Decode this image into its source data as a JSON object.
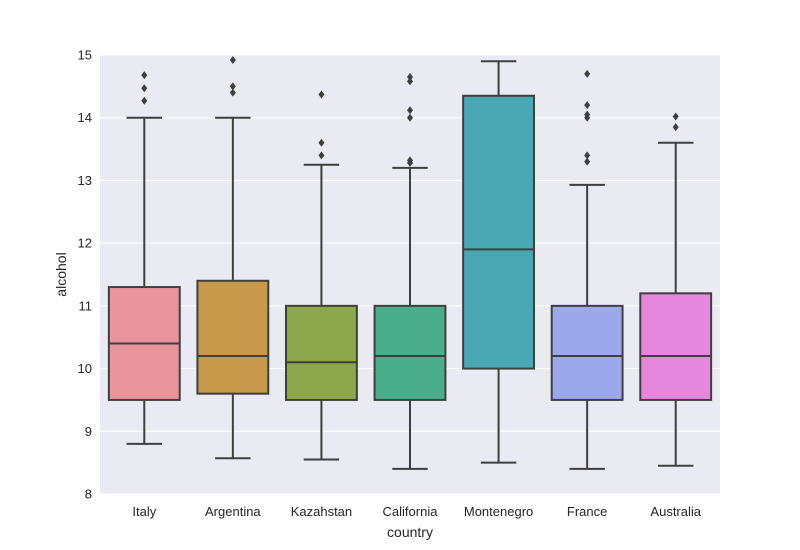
{
  "chart_data": {
    "type": "boxplot",
    "title": "",
    "xlabel": "country",
    "ylabel": "alcohol",
    "ylim": [
      8,
      15
    ],
    "yticks": [
      8,
      9,
      10,
      11,
      12,
      13,
      14,
      15
    ],
    "grid": true,
    "legend": "none",
    "categories": [
      "Italy",
      "Argentina",
      "Kazahstan",
      "California",
      "Montenegro",
      "France",
      "Australia"
    ],
    "boxes": [
      {
        "category": "Italy",
        "color": "#e9949d",
        "whisker_low": 8.8,
        "q1": 9.5,
        "median": 10.4,
        "q3": 11.3,
        "whisker_high": 14.0,
        "outliers": [
          14.27,
          14.47,
          14.68
        ]
      },
      {
        "category": "Argentina",
        "color": "#c69a4a",
        "whisker_low": 8.57,
        "q1": 9.6,
        "median": 10.2,
        "q3": 11.4,
        "whisker_high": 14.0,
        "outliers": [
          14.4,
          14.5,
          14.92
        ]
      },
      {
        "category": "Kazahstan",
        "color": "#8ea74c",
        "whisker_low": 8.55,
        "q1": 9.5,
        "median": 10.1,
        "q3": 11.0,
        "whisker_high": 13.25,
        "outliers": [
          13.4,
          13.6,
          14.37
        ]
      },
      {
        "category": "California",
        "color": "#4aad8c",
        "whisker_low": 8.4,
        "q1": 9.5,
        "median": 10.2,
        "q3": 11.0,
        "whisker_high": 13.2,
        "outliers": [
          13.28,
          13.32,
          14.0,
          14.12,
          14.58,
          14.65
        ]
      },
      {
        "category": "Montenegro",
        "color": "#4aa8b5",
        "whisker_low": 8.5,
        "q1": 10.0,
        "median": 11.9,
        "q3": 14.35,
        "whisker_high": 14.9,
        "outliers": []
      },
      {
        "category": "France",
        "color": "#9da8ea",
        "whisker_low": 8.4,
        "q1": 9.5,
        "median": 10.2,
        "q3": 11.0,
        "whisker_high": 12.93,
        "outliers": [
          13.3,
          13.4,
          14.0,
          14.05,
          14.2,
          14.7
        ]
      },
      {
        "category": "Australia",
        "color": "#e587dd",
        "whisker_low": 8.45,
        "q1": 9.5,
        "median": 10.2,
        "q3": 11.2,
        "whisker_high": 13.6,
        "outliers": [
          13.85,
          14.02
        ]
      }
    ]
  },
  "colors": {
    "plot_background": "#eaeaf2",
    "grid": "#ffffff",
    "lines": "#3f3f3f"
  }
}
